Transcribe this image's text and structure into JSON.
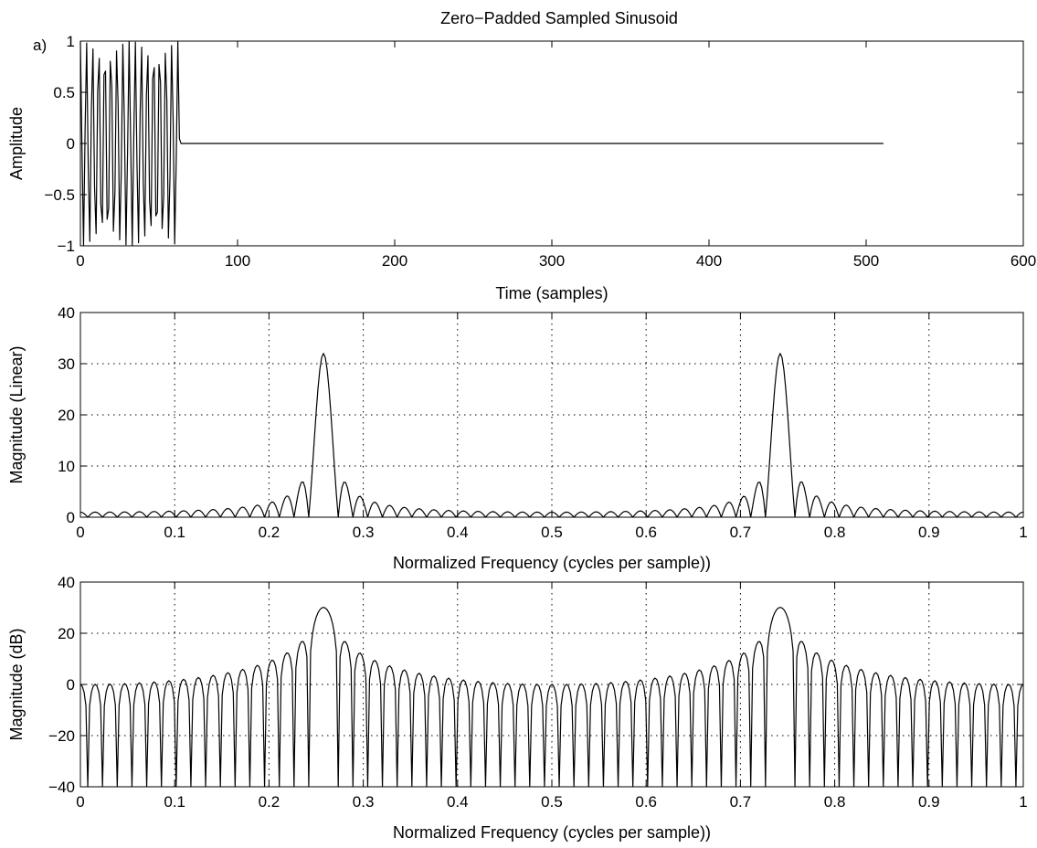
{
  "figure": {
    "title": "Zero−Padded Sampled Sinusoid",
    "background": "#ffffff",
    "line_color": "#000000"
  },
  "chart_data": [
    {
      "type": "line",
      "panel_tag": "a)",
      "title": "Zero−Padded Sampled Sinusoid",
      "xlabel": "Time (samples)",
      "ylabel": "Amplitude",
      "xlim": [
        0,
        600
      ],
      "ylim": [
        -1,
        1
      ],
      "xticks": [
        0,
        100,
        200,
        300,
        400,
        500,
        600
      ],
      "xtick_labels": [
        "0",
        "100",
        "200",
        "300",
        "400",
        "500",
        "600"
      ],
      "yticks": [
        -1,
        -0.5,
        0,
        0.5,
        1
      ],
      "ytick_labels": [
        "−1",
        "−0.5",
        "0",
        "0.5",
        "1"
      ],
      "grid": false,
      "signal": {
        "description_visible": "sinusoid for samples 0-63, zero from 64 to 511",
        "nonzero_samples": 64,
        "total_samples": 512,
        "normalized_frequency": 0.2578125,
        "amplitude": 1,
        "x_end": 511
      }
    },
    {
      "type": "line",
      "xlabel": "Normalized Frequency (cycles per sample))",
      "ylabel": "Magnitude (Linear)",
      "xlim": [
        0,
        1
      ],
      "ylim": [
        0,
        40
      ],
      "xticks": [
        0,
        0.1,
        0.2,
        0.3,
        0.4,
        0.5,
        0.6,
        0.7,
        0.8,
        0.9,
        1
      ],
      "xtick_labels": [
        "0",
        "0.1",
        "0.2",
        "0.3",
        "0.4",
        "0.5",
        "0.6",
        "0.7",
        "0.8",
        "0.9",
        "1"
      ],
      "yticks": [
        0,
        10,
        20,
        30,
        40
      ],
      "ytick_labels": [
        "0",
        "10",
        "20",
        "30",
        "40"
      ],
      "grid": true,
      "spectrum": {
        "fft_length": 512,
        "window_length": 64,
        "peaks": [
          {
            "frequency": 0.2578,
            "magnitude": 32
          },
          {
            "frequency": 0.7422,
            "magnitude": 32
          }
        ]
      }
    },
    {
      "type": "line",
      "xlabel": "Normalized Frequency (cycles per sample))",
      "ylabel": "Magnitude (dB)",
      "xlim": [
        0,
        1
      ],
      "ylim": [
        -40,
        40
      ],
      "xticks": [
        0,
        0.1,
        0.2,
        0.3,
        0.4,
        0.5,
        0.6,
        0.7,
        0.8,
        0.9,
        1
      ],
      "xtick_labels": [
        "0",
        "0.1",
        "0.2",
        "0.3",
        "0.4",
        "0.5",
        "0.6",
        "0.7",
        "0.8",
        "0.9",
        "1"
      ],
      "yticks": [
        -40,
        -20,
        0,
        20,
        40
      ],
      "ytick_labels": [
        "−40",
        "−20",
        "0",
        "20",
        "40"
      ],
      "grid": true,
      "spectrum": {
        "fft_length": 512,
        "window_length": 64,
        "peaks": [
          {
            "frequency": 0.2578,
            "magnitude_db": 30
          },
          {
            "frequency": 0.7422,
            "magnitude_db": 30
          }
        ],
        "floor_db": -40
      }
    }
  ]
}
